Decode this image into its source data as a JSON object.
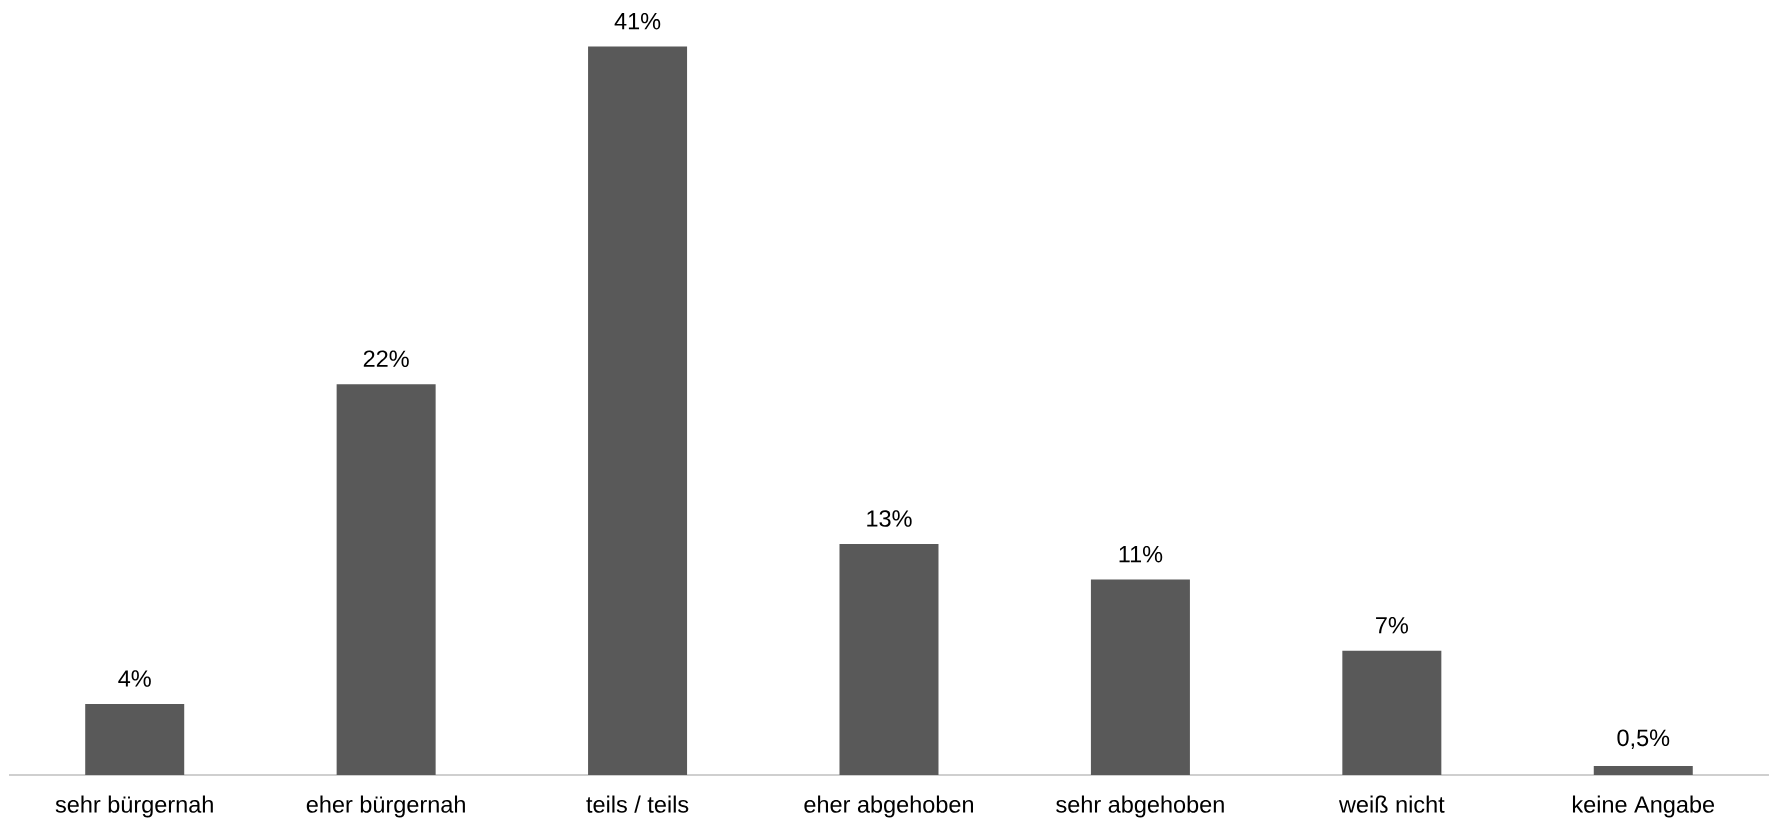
{
  "chart_data": {
    "type": "bar",
    "categories": [
      "sehr bürgernah",
      "eher bürgernah",
      "teils / teils",
      "eher abgehoben",
      "sehr abgehoben",
      "weiß nicht",
      "keine Angabe"
    ],
    "values": [
      4,
      22,
      41,
      13,
      11,
      7,
      0.5
    ],
    "value_labels": [
      "4%",
      "22%",
      "41%",
      "13%",
      "11%",
      "7%",
      "0,5%"
    ],
    "color": "#595959"
  }
}
